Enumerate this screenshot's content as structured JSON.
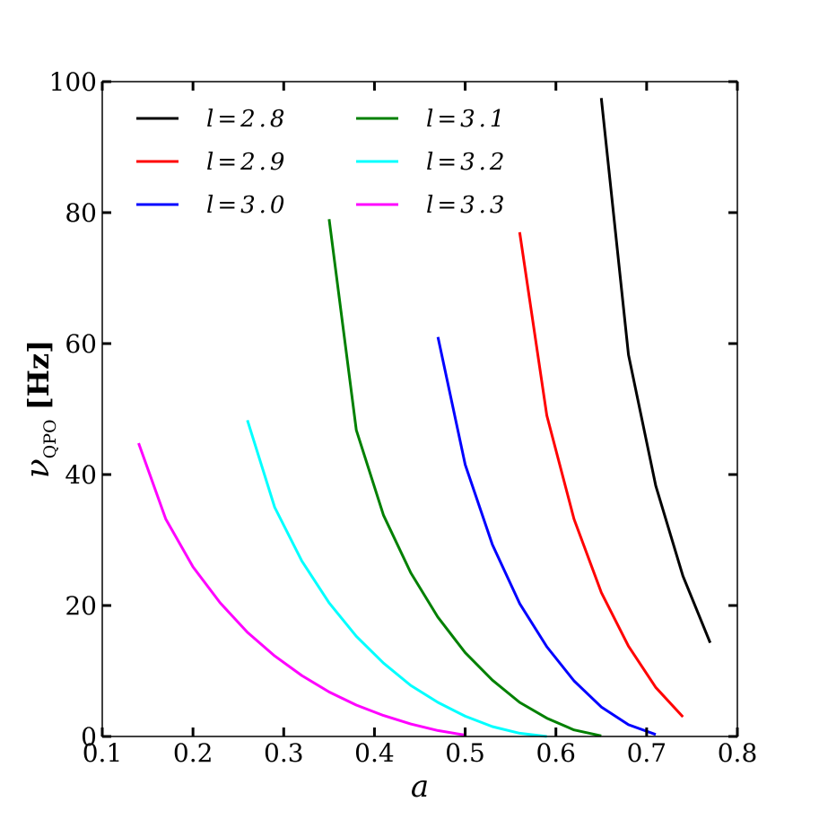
{
  "chart_data": {
    "type": "line",
    "xlabel": "a",
    "ylabel": {
      "symbol": "ν",
      "subscript": "QPO",
      "unit": "[Hz]"
    },
    "xlim": [
      0.1,
      0.8
    ],
    "ylim": [
      0,
      100
    ],
    "xticks": [
      "0.1",
      "0.2",
      "0.3",
      "0.4",
      "0.5",
      "0.6",
      "0.7",
      "0.8"
    ],
    "yticks": [
      "0",
      "20",
      "40",
      "60",
      "80",
      "100"
    ],
    "grid": false,
    "legend_position": "upper-left",
    "legend_columns": 2,
    "series": [
      {
        "name": "l = 2.8",
        "l": "l",
        "eq": "=",
        "v": "2.8",
        "color": "#000000",
        "x": [
          0.65,
          0.68,
          0.71,
          0.74,
          0.77
        ],
        "y": [
          97.5,
          58.3,
          38.3,
          24.5,
          14.3
        ]
      },
      {
        "name": "l = 2.9",
        "l": "l",
        "eq": "=",
        "v": "2.9",
        "color": "#ff0000",
        "x": [
          0.56,
          0.59,
          0.62,
          0.65,
          0.68,
          0.71,
          0.74
        ],
        "y": [
          77.0,
          49.0,
          33.2,
          22.0,
          13.8,
          7.5,
          3.0
        ]
      },
      {
        "name": "l = 3.0",
        "l": "l",
        "eq": "=",
        "v": "3.0",
        "color": "#0000ff",
        "x": [
          0.47,
          0.5,
          0.53,
          0.56,
          0.59,
          0.62,
          0.65,
          0.68,
          0.71
        ],
        "y": [
          61.0,
          41.5,
          29.3,
          20.3,
          13.7,
          8.5,
          4.5,
          1.8,
          0.3
        ]
      },
      {
        "name": "l = 3.1",
        "l": "l",
        "eq": "=",
        "v": "3.1",
        "color": "#008000",
        "x": [
          0.35,
          0.38,
          0.41,
          0.44,
          0.47,
          0.5,
          0.53,
          0.56,
          0.59,
          0.62,
          0.65
        ],
        "y": [
          79.0,
          46.8,
          33.8,
          25.0,
          18.2,
          12.8,
          8.6,
          5.2,
          2.8,
          1.0,
          0.1
        ]
      },
      {
        "name": "l = 3.2",
        "l": "l",
        "eq": "=",
        "v": "3.2",
        "color": "#00ffff",
        "x": [
          0.26,
          0.29,
          0.32,
          0.35,
          0.38,
          0.41,
          0.44,
          0.47,
          0.5,
          0.53,
          0.56,
          0.59
        ],
        "y": [
          48.3,
          35.0,
          26.8,
          20.4,
          15.3,
          11.2,
          7.8,
          5.2,
          3.1,
          1.5,
          0.5,
          0.0
        ]
      },
      {
        "name": "l = 3.3",
        "l": "l",
        "eq": "=",
        "v": "3.3",
        "color": "#ff00ff",
        "x": [
          0.14,
          0.17,
          0.2,
          0.23,
          0.26,
          0.29,
          0.32,
          0.35,
          0.38,
          0.41,
          0.44,
          0.47,
          0.5
        ],
        "y": [
          44.8,
          33.2,
          25.9,
          20.4,
          15.9,
          12.3,
          9.3,
          6.8,
          4.8,
          3.2,
          1.9,
          0.9,
          0.2
        ]
      }
    ]
  }
}
